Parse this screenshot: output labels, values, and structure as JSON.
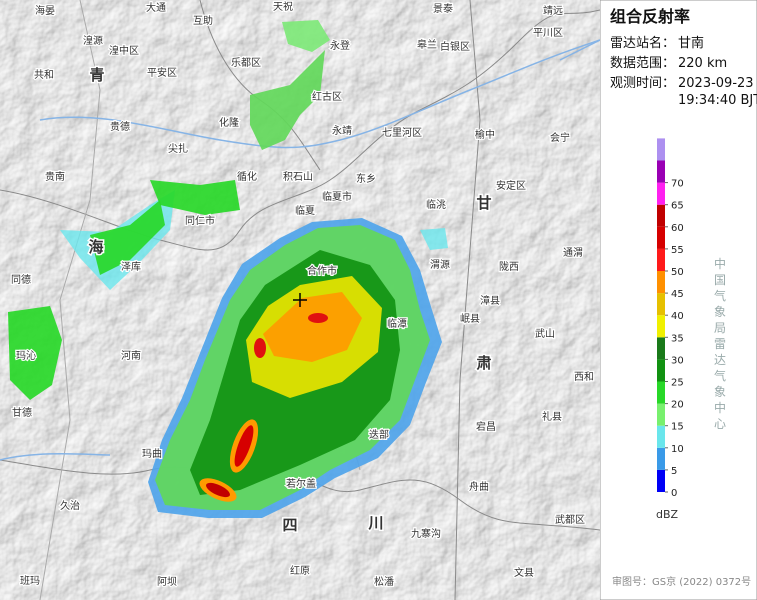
{
  "panel": {
    "title": "组合反射率",
    "station": {
      "label": "雷达站名：",
      "value": "甘南"
    },
    "range": {
      "label": "数据范围：",
      "value": "220 km"
    },
    "time": {
      "label": "观测时间：",
      "value": [
        "2023-09-23",
        "19:34:40 BJT"
      ]
    }
  },
  "legend": {
    "ticks": [
      0,
      5,
      10,
      15,
      20,
      25,
      30,
      35,
      40,
      45,
      50,
      55,
      60,
      65,
      70
    ],
    "colors": [
      "#0000f6",
      "#3a9ae8",
      "#6ae6ec",
      "#78f06e",
      "#28d828",
      "#129212",
      "#1a7a1a",
      "#f0f000",
      "#e6c000",
      "#ff9000",
      "#ff1a1a",
      "#d60000",
      "#c00000",
      "#ff20f0",
      "#9a00b4",
      "#ad90f0"
    ],
    "unit": "dBZ"
  },
  "credit": "中国气象局雷达气象中心",
  "approval": "审图号：GS京 (2022) 0372号",
  "map": {
    "labels": [
      "海晏",
      "天祝",
      "大通",
      "互助",
      "景泰",
      "靖远",
      "平川区",
      "湟源",
      "湟中区",
      "乐都区",
      "永登",
      "皋兰",
      "白银区",
      "共和",
      "平安区",
      "红古区",
      "贵德",
      "化隆",
      "永靖",
      "七里河区",
      "榆中",
      "会宁",
      "尖扎",
      "循化",
      "积石山",
      "东乡",
      "临夏市",
      "临洮",
      "安定区",
      "贵南",
      "同仁市",
      "临夏",
      "通渭",
      "泽库",
      "合作市",
      "陇西",
      "岷县",
      "渭源",
      "漳县",
      "武山",
      "同德",
      "河南",
      "临潭",
      "玛沁",
      "甘德",
      "迭部",
      "宕昌",
      "礼县",
      "西和",
      "玛曲",
      "若尔盖",
      "舟曲",
      "武都区",
      "九寨沟",
      "久治",
      "红原",
      "松潘",
      "文县",
      "班玛",
      "阿坝"
    ],
    "regions": [
      "青",
      "海",
      "甘",
      "肃",
      "四",
      "川"
    ]
  }
}
